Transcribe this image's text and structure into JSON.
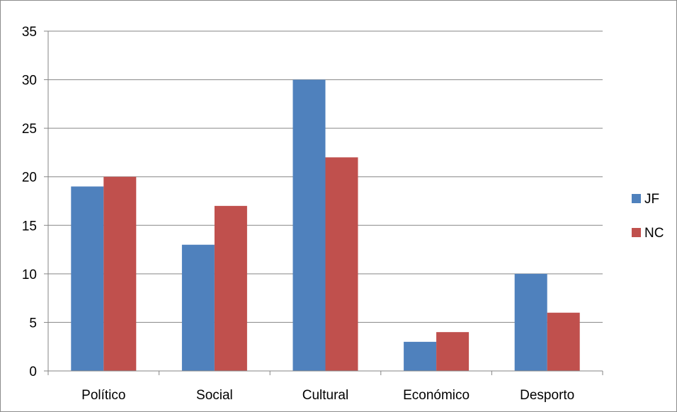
{
  "chart_data": {
    "type": "bar",
    "categories": [
      "Político",
      "Social",
      "Cultural",
      "Económico",
      "Desporto"
    ],
    "series": [
      {
        "name": "JF",
        "values": [
          19,
          13,
          30,
          3,
          10
        ],
        "color": "#4f81bd"
      },
      {
        "name": "NC",
        "values": [
          20,
          17,
          22,
          4,
          6
        ],
        "color": "#c0504d"
      }
    ],
    "title": "",
    "xlabel": "",
    "ylabel": "",
    "ylim": [
      0,
      35
    ],
    "yticks": [
      0,
      5,
      10,
      15,
      20,
      25,
      30,
      35
    ],
    "grid": true,
    "legend": "right"
  }
}
